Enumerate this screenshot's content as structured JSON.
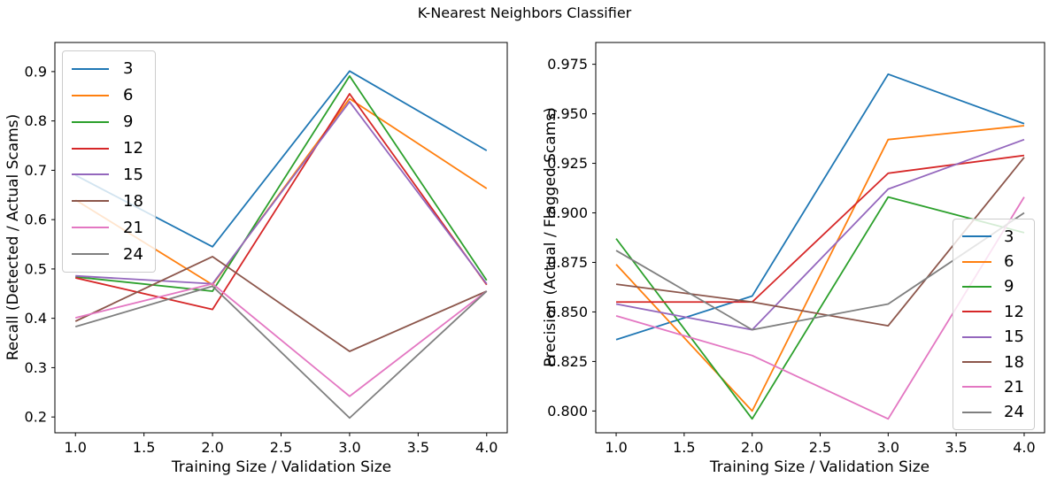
{
  "figure_title": "K-Nearest Neighbors Classifier",
  "chart_data": [
    {
      "type": "line",
      "title": "",
      "xlabel": "Training Size / Validation Size",
      "ylabel": "Recall (Detected / Actual Scams)",
      "x": [
        1,
        2,
        3,
        4
      ],
      "xlim": [
        0.85,
        4.15
      ],
      "ylim": [
        0.168,
        0.959
      ],
      "grid": false,
      "legend_position": "upper-left",
      "xticks": {
        "values": [
          1.0,
          1.5,
          2.0,
          2.5,
          3.0,
          3.5,
          4.0
        ],
        "labels": [
          "1.0",
          "1.5",
          "2.0",
          "2.5",
          "3.0",
          "3.5",
          "4.0"
        ]
      },
      "yticks": {
        "values": [
          0.2,
          0.3,
          0.4,
          0.5,
          0.6,
          0.7,
          0.8,
          0.9
        ],
        "labels": [
          "0.2",
          "0.3",
          "0.4",
          "0.5",
          "0.6",
          "0.7",
          "0.8",
          "0.9"
        ]
      },
      "series": [
        {
          "name": "3",
          "color": "#1f77b4",
          "values": [
            0.69,
            0.545,
            0.901,
            0.74
          ]
        },
        {
          "name": "6",
          "color": "#ff7f0e",
          "values": [
            0.64,
            0.468,
            0.845,
            0.663
          ]
        },
        {
          "name": "9",
          "color": "#2ca02c",
          "values": [
            0.484,
            0.455,
            0.891,
            0.477
          ]
        },
        {
          "name": "12",
          "color": "#d62728",
          "values": [
            0.482,
            0.418,
            0.855,
            0.468
          ]
        },
        {
          "name": "15",
          "color": "#9467bd",
          "values": [
            0.486,
            0.47,
            0.839,
            0.47
          ]
        },
        {
          "name": "18",
          "color": "#8c564b",
          "values": [
            0.394,
            0.525,
            0.333,
            0.455
          ]
        },
        {
          "name": "21",
          "color": "#e377c2",
          "values": [
            0.401,
            0.47,
            0.242,
            0.455
          ]
        },
        {
          "name": "24",
          "color": "#7f7f7f",
          "values": [
            0.383,
            0.465,
            0.198,
            0.455
          ]
        }
      ]
    },
    {
      "type": "line",
      "title": "",
      "xlabel": "Training Size / Validation Size",
      "ylabel": "Precision (Actual / Flagged Scams)",
      "x": [
        1,
        2,
        3,
        4
      ],
      "xlim": [
        0.85,
        4.15
      ],
      "ylim": [
        0.789,
        0.986
      ],
      "grid": false,
      "legend_position": "lower-right",
      "xticks": {
        "values": [
          1.0,
          1.5,
          2.0,
          2.5,
          3.0,
          3.5,
          4.0
        ],
        "labels": [
          "1.0",
          "1.5",
          "2.0",
          "2.5",
          "3.0",
          "3.5",
          "4.0"
        ]
      },
      "yticks": {
        "values": [
          0.8,
          0.825,
          0.85,
          0.875,
          0.9,
          0.925,
          0.95,
          0.975
        ],
        "labels": [
          "0.800",
          "0.825",
          "0.850",
          "0.875",
          "0.900",
          "0.925",
          "0.950",
          "0.975"
        ]
      },
      "series": [
        {
          "name": "3",
          "color": "#1f77b4",
          "values": [
            0.836,
            0.858,
            0.97,
            0.945
          ]
        },
        {
          "name": "6",
          "color": "#ff7f0e",
          "values": [
            0.874,
            0.8,
            0.937,
            0.944
          ]
        },
        {
          "name": "9",
          "color": "#2ca02c",
          "values": [
            0.887,
            0.796,
            0.908,
            0.89
          ]
        },
        {
          "name": "12",
          "color": "#d62728",
          "values": [
            0.855,
            0.855,
            0.92,
            0.929
          ]
        },
        {
          "name": "15",
          "color": "#9467bd",
          "values": [
            0.854,
            0.841,
            0.912,
            0.937
          ]
        },
        {
          "name": "18",
          "color": "#8c564b",
          "values": [
            0.864,
            0.855,
            0.843,
            0.928
          ]
        },
        {
          "name": "21",
          "color": "#e377c2",
          "values": [
            0.848,
            0.828,
            0.796,
            0.908
          ]
        },
        {
          "name": "24",
          "color": "#7f7f7f",
          "values": [
            0.881,
            0.841,
            0.854,
            0.9
          ]
        }
      ]
    }
  ]
}
